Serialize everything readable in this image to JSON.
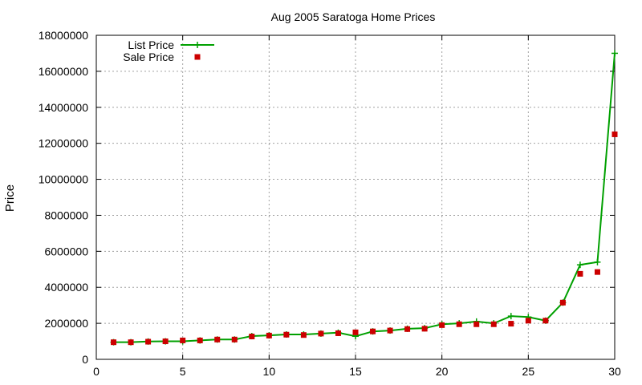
{
  "chart_data": {
    "type": "line",
    "title": "Aug 2005 Saratoga Home Prices",
    "xlabel": "",
    "ylabel": "Price",
    "xlim": [
      0,
      30
    ],
    "ylim": [
      0,
      18000000
    ],
    "x_ticks": [
      0,
      5,
      10,
      15,
      20,
      25,
      30
    ],
    "y_ticks": [
      0,
      2000000,
      4000000,
      6000000,
      8000000,
      10000000,
      12000000,
      14000000,
      16000000,
      18000000
    ],
    "grid": true,
    "legend_position": "top-left",
    "colors": {
      "list": "#00a000",
      "sale": "#cc0000"
    },
    "x": [
      1,
      2,
      3,
      4,
      5,
      6,
      7,
      8,
      9,
      10,
      11,
      12,
      13,
      14,
      15,
      16,
      17,
      18,
      19,
      20,
      21,
      22,
      23,
      24,
      25,
      26,
      27,
      28,
      29,
      30
    ],
    "series": [
      {
        "name": "List Price",
        "style": "lines+crosses",
        "values": [
          950000,
          950000,
          990000,
          1000000,
          1000000,
          1050000,
          1100000,
          1100000,
          1290000,
          1330000,
          1380000,
          1380000,
          1430000,
          1480000,
          1280000,
          1550000,
          1600000,
          1700000,
          1730000,
          1950000,
          2000000,
          2100000,
          2000000,
          2400000,
          2350000,
          2150000,
          3150000,
          5250000,
          5400000,
          17000000
        ]
      },
      {
        "name": "Sale Price",
        "style": "squares",
        "values": [
          950000,
          950000,
          980000,
          1000000,
          1050000,
          1050000,
          1100000,
          1100000,
          1270000,
          1320000,
          1370000,
          1350000,
          1430000,
          1450000,
          1500000,
          1550000,
          1600000,
          1680000,
          1700000,
          1900000,
          1950000,
          1950000,
          1950000,
          1980000,
          2150000,
          2150000,
          3150000,
          4750000,
          4850000,
          12500000
        ]
      }
    ]
  }
}
